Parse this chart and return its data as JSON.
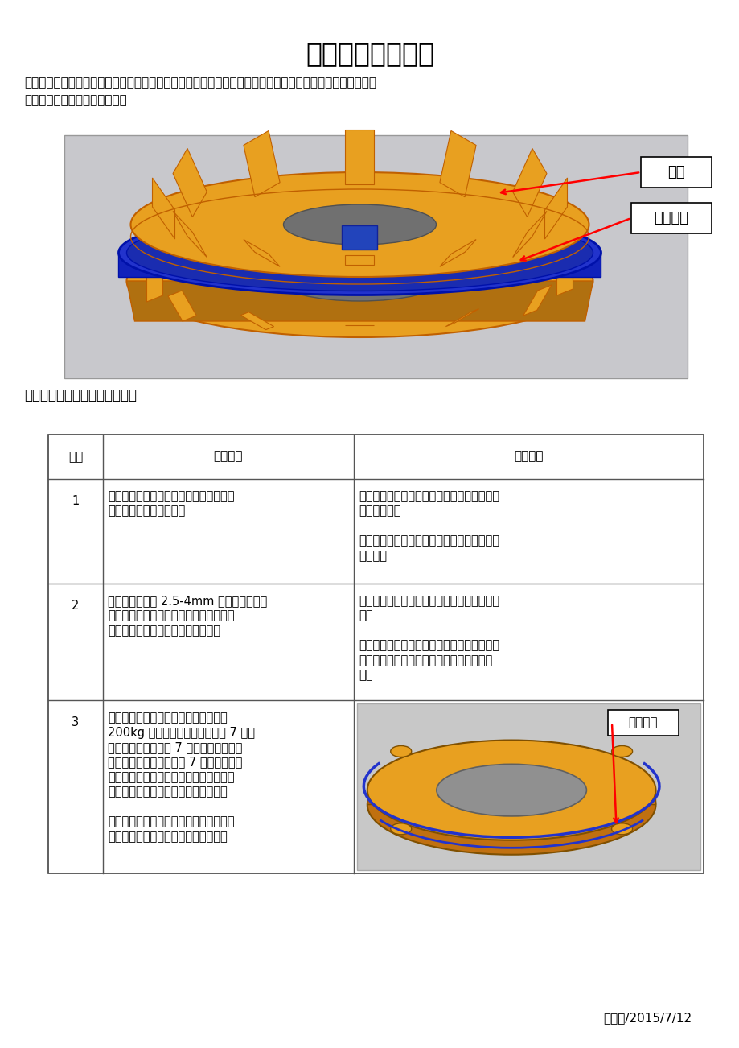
{
  "title": "压盘双层工艺总结",
  "intro_line1": "一、双层工艺简介：即在两层压盘之间做一个覆膜砂芯子，造型时将芯子下到芯头定位处这样造一型出上下两",
  "intro_line2": "层铸件，产能比原来提升一倍。",
  "section2_label": "二、生产过程中所遇问题和对策",
  "table_headers": [
    "序号",
    "问题描述",
    "解决方案"
  ],
  "row1_seq": "1",
  "row1_prob_line1": "覆膜砂芯为薄片状，易变形，造成压盘耳",
  "row1_prob_line2": "部平面平面度达不到要求",
  "row1_sol_line1": "制芯后使用专用平台存放待芯彻底冷却后再往",
  "row1_sol_line2": "芯架上存放。",
  "row1_sol_line3": "",
  "row1_sol_line4": "对平面度不合格处芯盒进行修整，使平面度达",
  "row1_sol_line5": "到要求。",
  "row2_seq": "2",
  "row2_prob_line1": "铸件加工大平面 2.5-4mm 后有疏松现象。",
  "row2_prob_line2": "原因为双层芯使铸件热节发生变化，热节",
  "row2_prob_line3": "向两芯之间的表面方向产生了偏移。",
  "row2_sol_line1": "对浇注系统进行改进加强补缩能力以解决此问",
  "row2_sol_line2": "题。",
  "row2_sol_line3": "",
  "row2_sol_line4": "还有一种方案为在芯表面刷耐热涂料如锆英粉",
  "row2_sol_line5": "涂料应也会有改观，但此方法当时未进行试",
  "row2_sol_line6": "验。",
  "row3_seq": "3",
  "row3_prob_line1": "成本和效率；因亨特线一个砂型重量在",
  "row3_prob_line2": "200kg 左右，每个砂型成本约在 7 元上",
  "row3_prob_line3": "下，如芯子成本超过 7 元而经济性就会变",
  "row3_prob_line4": "差，但如果芯成本未超过 7 元此种造型方",
  "row3_prob_line5": "法应存在一定的优势，但此方法的工艺出",
  "row3_prob_line6": "品率会大大增加，从而也会降低成本。",
  "row3_prob_line7": "",
  "row3_prob_line8": "通过了解多个厂家一些相对简单且有一定",
  "row3_prob_line9": "重量的铸件多采用此种铸造方法铸造。",
  "annotation1": "压盘",
  "annotation2": "中间隔芯",
  "annotation3": "耳部平面",
  "footer": "王亚伟/2015/7/12",
  "bg_color": "#ffffff",
  "text_color": "#000000",
  "img1_bg": "#c8c8cc",
  "img2_bg": "#c8c8c8",
  "orange_color": "#E8A020",
  "orange_dark": "#C06000",
  "blue_color": "#2233CC",
  "blue_light": "#3344DD"
}
